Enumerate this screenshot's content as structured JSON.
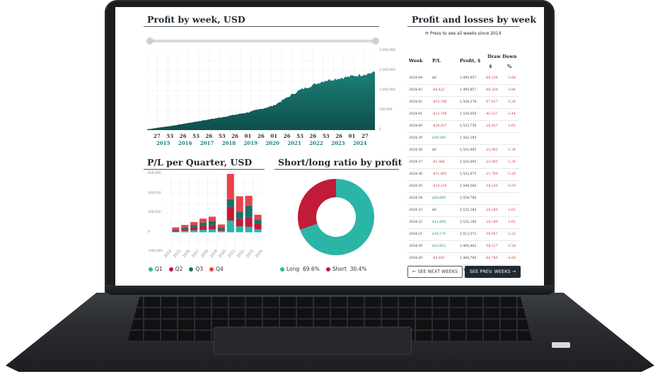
{
  "weekly_chart": {
    "title": "Profit by week, USD",
    "y_ticks": [
      "2,000,000",
      "1,500,000",
      "1,000,000",
      "500,000",
      "0"
    ],
    "x_ticks": [
      "27",
      "53",
      "26",
      "53",
      "26",
      "53",
      "26",
      "01",
      "26",
      "01",
      "26",
      "53",
      "26",
      "53",
      "26",
      "01",
      "27"
    ],
    "x_years": [
      "2015",
      "2016",
      "2017",
      "2018",
      "2019",
      "2020",
      "2021",
      "2022",
      "2023",
      "2024"
    ]
  },
  "table": {
    "title": "Profit and losses by week",
    "refresh_label": "Press to see all weeks since 2014",
    "headers": {
      "week": "Week",
      "pl": "P/L",
      "profit": "Profit, $",
      "drawdown": "Draw Down",
      "dd_usd": "$",
      "dd_pct": "%"
    },
    "rows": [
      {
        "week": "2024-44",
        "pl": "$0",
        "profit": "1,495,857",
        "dd": "-66,338",
        "pct": "-3.84"
      },
      {
        "week": "2024-43",
        "pl": "-$8,423",
        "profit": "1,495,857",
        "dd": "-66,338",
        "pct": "-3.84"
      },
      {
        "week": "2024-42",
        "pl": "-$15,780",
        "profit": "1,504,278",
        "dd": "-57,917",
        "pct": "-3.36"
      },
      {
        "week": "2024-41",
        "pl": "-$13,780",
        "profit": "1,520,058",
        "dd": "-42,137",
        "pct": "-2.44"
      },
      {
        "week": "2024-40",
        "pl": "-$28,437",
        "profit": "1,533,758",
        "dd": "-28,437",
        "pct": "-1.65"
      },
      {
        "week": "2024-39",
        "pl": "$30,500",
        "profit": "1,562,195",
        "dd": "",
        "pct": ""
      },
      {
        "week": "2024-38",
        "pl": "$0",
        "profit": "1,531,695",
        "dd": "-23,065",
        "pct": "-1.34"
      },
      {
        "week": "2024-37",
        "pl": "-$1,366",
        "profit": "1,531,695",
        "dd": "-23,065",
        "pct": "-1.34"
      },
      {
        "week": "2024-36",
        "pl": "-$11,483",
        "profit": "1,533,075",
        "dd": "-21,700",
        "pct": "-1.26"
      },
      {
        "week": "2024-35",
        "pl": "-$10,220",
        "profit": "1,544,560",
        "dd": "-10,220",
        "pct": "-0.59"
      },
      {
        "week": "2024-34",
        "pl": "$29,600",
        "profit": "1,554,780",
        "dd": "",
        "pct": ""
      },
      {
        "week": "2024-33",
        "pl": "$0",
        "profit": "1,525,180",
        "dd": "-28,349",
        "pct": "-1.65"
      },
      {
        "week": "2024-32",
        "pl": "$11,608",
        "profit": "1,525,180",
        "dd": "-28,349",
        "pct": "-1.65"
      },
      {
        "week": "2024-31",
        "pl": "$18,170",
        "profit": "1,513,572",
        "dd": "-39,957",
        "pct": "-2.33"
      },
      {
        "week": "2024-30",
        "pl": "$10,652",
        "profit": "1,495,402",
        "dd": "-58,127",
        "pct": "-3.38"
      },
      {
        "week": "2024-29",
        "pl": "-$9,605",
        "profit": "1,484,790",
        "dd": "-68,780",
        "pct": "-4.00"
      },
      {
        "week": "2024-28",
        "pl": "$28,550",
        "profit": "1,494,393",
        "dd": "-59,156",
        "pct": "-3.44"
      }
    ],
    "next_label": "← SEE NEXT WEEKS",
    "prev_label": "SEE PREV. WEEKS →"
  },
  "quarter_chart": {
    "title": "P/L per Quarter, USD",
    "y_ticks": [
      "600,000",
      "400,000",
      "200,000",
      "0",
      "-200,000"
    ],
    "x_ticks": [
      "2014",
      "2015",
      "2016",
      "2017",
      "2018",
      "2019",
      "2020",
      "2021",
      "2022",
      "2023",
      "2024"
    ],
    "legend": [
      "Q1",
      "Q2",
      "Q3",
      "Q4"
    ]
  },
  "ratio_chart": {
    "title": "Short/long ratio by profit",
    "long_label": "Long",
    "long_value": "69.6%",
    "short_label": "Short",
    "short_value": "30.4%"
  },
  "chart_data": [
    {
      "type": "area",
      "title": "Profit by week, USD",
      "x": [
        "2015",
        "2016",
        "2017",
        "2018",
        "2019",
        "2020",
        "2021",
        "2022",
        "2023",
        "2024"
      ],
      "values": [
        20000,
        110000,
        220000,
        330000,
        450000,
        620000,
        1000000,
        1250000,
        1350000,
        1460000
      ],
      "ylim": [
        0,
        2000000
      ],
      "color": "#1c8077"
    },
    {
      "type": "bar",
      "title": "P/L per Quarter, USD",
      "categories": [
        "2014",
        "2015",
        "2016",
        "2017",
        "2018",
        "2019",
        "2020",
        "2021",
        "2022",
        "2023",
        "2024"
      ],
      "series": [
        {
          "name": "Q1",
          "values": [
            0,
            5000,
            15000,
            20000,
            25000,
            30000,
            15000,
            120000,
            60000,
            55000,
            30000
          ],
          "color": "#2bb5a6"
        },
        {
          "name": "Q2",
          "values": [
            0,
            15000,
            20000,
            30000,
            40000,
            45000,
            20000,
            140000,
            80000,
            100000,
            60000
          ],
          "color": "#c21a39"
        },
        {
          "name": "Q3",
          "values": [
            0,
            10000,
            15000,
            25000,
            35000,
            40000,
            15000,
            80000,
            70000,
            120000,
            40000
          ],
          "color": "#1c6f67"
        },
        {
          "name": "Q4",
          "values": [
            0,
            20000,
            25000,
            30000,
            40000,
            45000,
            30000,
            300000,
            160000,
            100000,
            50000
          ],
          "color": "#e8424d"
        }
      ],
      "ylim": [
        -200000,
        600000
      ]
    },
    {
      "type": "pie",
      "title": "Short/long ratio by profit",
      "categories": [
        "Long",
        "Short"
      ],
      "values": [
        69.6,
        30.4
      ],
      "colors": [
        "#2bb5a6",
        "#c21a39"
      ]
    }
  ]
}
